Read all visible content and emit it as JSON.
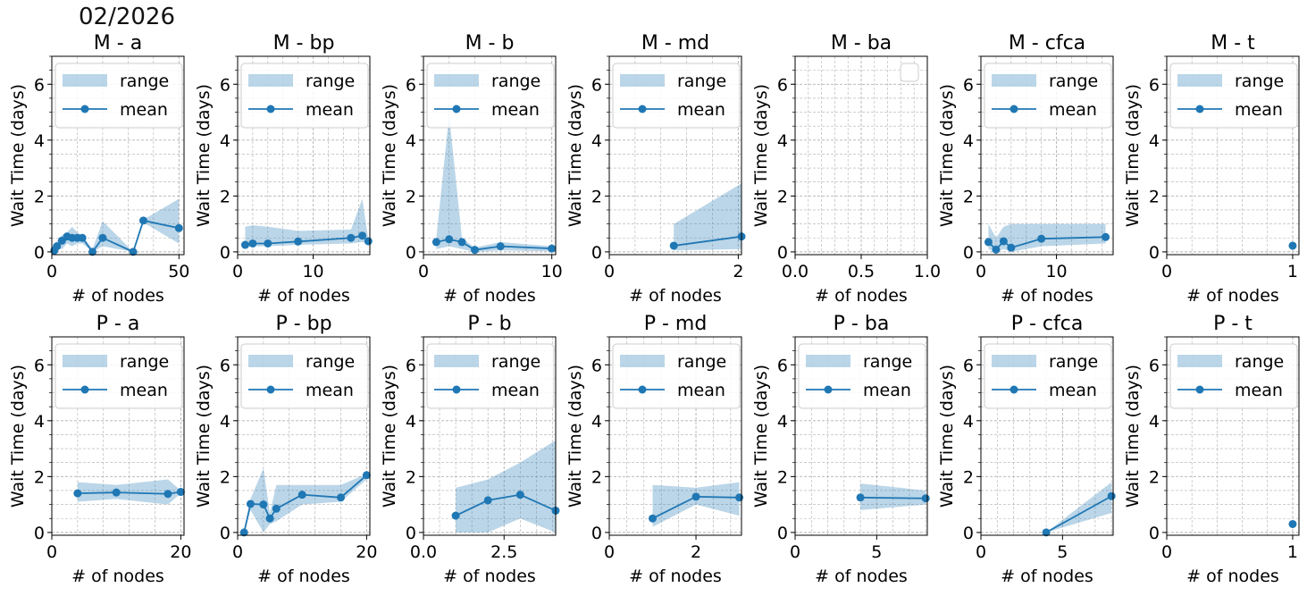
{
  "suptitle": "02/2026",
  "colors": {
    "mean": "#1f77b4",
    "range": "#1f77b4",
    "grid": "#b0b0b0",
    "axis": "#000000"
  },
  "legend_labels": {
    "range": "range",
    "mean": "mean"
  },
  "chart_data": [
    {
      "type": "area",
      "title": "M -  a",
      "xlabel": "# of nodes",
      "ylabel": "Wait Time (days)",
      "xlim": [
        0,
        52
      ],
      "ylim": [
        -0.1,
        7
      ],
      "xticks": [
        0,
        50
      ],
      "yticks": [
        0,
        2,
        4,
        6
      ],
      "legend": "upper-left",
      "legend_items": [
        "range",
        "mean"
      ],
      "x": [
        1,
        2,
        4,
        6,
        8,
        10,
        12,
        16,
        20,
        32,
        36,
        50
      ],
      "mean": [
        0.05,
        0.2,
        0.4,
        0.55,
        0.5,
        0.5,
        0.5,
        0.0,
        0.5,
        0.0,
        1.12,
        0.85
      ],
      "range_low": [
        0.0,
        0.1,
        0.1,
        0.3,
        0.2,
        0.3,
        0.3,
        0.0,
        0.2,
        0.0,
        1.05,
        0.3
      ],
      "range_high": [
        0.1,
        0.4,
        0.6,
        0.7,
        0.9,
        0.7,
        0.6,
        0.1,
        1.1,
        0.0,
        1.15,
        1.9
      ]
    },
    {
      "type": "area",
      "title": "M -  bp",
      "xlabel": "# of nodes",
      "ylabel": "Wait Time (days)",
      "xlim": [
        0,
        17.5
      ],
      "ylim": [
        -0.1,
        7
      ],
      "xticks": [
        0,
        10
      ],
      "yticks": [
        0,
        2,
        4,
        6
      ],
      "legend": "upper-left",
      "legend_items": [
        "range",
        "mean"
      ],
      "x": [
        1,
        2,
        4,
        8,
        15,
        16.5,
        17.3
      ],
      "mean": [
        0.25,
        0.3,
        0.3,
        0.37,
        0.5,
        0.58,
        0.38
      ],
      "range_low": [
        0.15,
        0.2,
        0.2,
        0.25,
        0.3,
        0.35,
        0.3
      ],
      "range_high": [
        0.9,
        0.95,
        0.9,
        0.75,
        0.8,
        1.9,
        0.45
      ]
    },
    {
      "type": "area",
      "title": "M -  b",
      "xlabel": "# of nodes",
      "ylabel": "Wait Time (days)",
      "xlim": [
        0,
        10.3
      ],
      "ylim": [
        -0.1,
        7
      ],
      "xticks": [
        0,
        10
      ],
      "yticks": [
        0,
        2,
        4,
        6
      ],
      "legend": "upper-left",
      "legend_items": [
        "range",
        "mean"
      ],
      "x": [
        1,
        2,
        3,
        4,
        6,
        10
      ],
      "mean": [
        0.35,
        0.45,
        0.35,
        0.07,
        0.2,
        0.12
      ],
      "range_low": [
        0.1,
        0.2,
        0.1,
        0.0,
        0.05,
        0.02
      ],
      "range_high": [
        0.5,
        4.9,
        0.5,
        0.15,
        0.35,
        0.2
      ]
    },
    {
      "type": "area",
      "title": "M -  md",
      "xlabel": "# of nodes",
      "ylabel": "Wait Time (days)",
      "xlim": [
        0,
        2.05
      ],
      "ylim": [
        -0.1,
        7
      ],
      "xticks": [
        0,
        2
      ],
      "yticks": [
        0,
        2,
        4,
        6
      ],
      "legend": "upper-left",
      "legend_items": [
        "range",
        "mean"
      ],
      "x": [
        1,
        2.05
      ],
      "mean": [
        0.22,
        0.55
      ],
      "range_low": [
        0.05,
        0.1
      ],
      "range_high": [
        1.0,
        2.45
      ]
    },
    {
      "type": "area",
      "title": "M -  ba",
      "xlabel": "# of nodes",
      "ylabel": "Wait Time (days)",
      "xlim": [
        0,
        1
      ],
      "ylim": [
        -0.1,
        7
      ],
      "xticks": [
        0.0,
        0.5,
        1.0
      ],
      "xtick_labels": [
        "0.0",
        "0.5",
        "1.0"
      ],
      "yticks": [
        0,
        2,
        4,
        6
      ],
      "legend": "upper-right",
      "legend_items": [],
      "x": [],
      "mean": [],
      "range_low": [],
      "range_high": []
    },
    {
      "type": "area",
      "title": "M -  cfca",
      "xlabel": "# of nodes",
      "ylabel": "Wait Time (days)",
      "xlim": [
        0,
        17.5
      ],
      "ylim": [
        -0.1,
        7
      ],
      "xticks": [
        0,
        10
      ],
      "yticks": [
        0,
        2,
        4,
        6
      ],
      "legend": "upper-left",
      "legend_items": [
        "range",
        "mean"
      ],
      "x": [
        1,
        2,
        3,
        4,
        8,
        16.5
      ],
      "mean": [
        0.35,
        0.08,
        0.38,
        0.15,
        0.47,
        0.53
      ],
      "range_low": [
        0.1,
        0.0,
        0.1,
        0.0,
        0.2,
        0.3
      ],
      "range_high": [
        1.0,
        0.5,
        0.9,
        1.0,
        1.0,
        1.0
      ]
    },
    {
      "type": "area",
      "title": "M -  t",
      "xlabel": "# of nodes",
      "ylabel": "Wait Time (days)",
      "xlim": [
        0,
        1.05
      ],
      "ylim": [
        -0.1,
        7
      ],
      "xticks": [
        0,
        1
      ],
      "yticks": [
        0,
        2,
        4,
        6
      ],
      "legend": "upper-left",
      "legend_items": [
        "range",
        "mean"
      ],
      "x": [
        1
      ],
      "mean": [
        0.22
      ],
      "range_low": [
        0.22
      ],
      "range_high": [
        0.22
      ]
    },
    {
      "type": "area",
      "title": "P -  a",
      "xlabel": "# of nodes",
      "ylabel": "Wait Time (days)",
      "xlim": [
        0,
        20.5
      ],
      "ylim": [
        -0.1,
        7
      ],
      "xticks": [
        0,
        20
      ],
      "yticks": [
        0,
        2,
        4,
        6
      ],
      "legend": "upper-left",
      "legend_items": [
        "range",
        "mean"
      ],
      "x": [
        4,
        10,
        18,
        20
      ],
      "mean": [
        1.4,
        1.43,
        1.38,
        1.45
      ],
      "range_low": [
        1.1,
        1.2,
        1.0,
        1.4
      ],
      "range_high": [
        1.8,
        1.7,
        1.9,
        1.5
      ]
    },
    {
      "type": "area",
      "title": "P -  bp",
      "xlabel": "# of nodes",
      "ylabel": "Wait Time (days)",
      "xlim": [
        0,
        20.5
      ],
      "ylim": [
        -0.1,
        7
      ],
      "xticks": [
        0,
        20
      ],
      "yticks": [
        0,
        2,
        4,
        6
      ],
      "legend": "upper-left",
      "legend_items": [
        "range",
        "mean"
      ],
      "x": [
        1,
        2,
        4,
        5,
        6,
        10,
        16,
        20
      ],
      "mean": [
        0.0,
        1.02,
        1.0,
        0.5,
        0.85,
        1.35,
        1.25,
        2.05
      ],
      "range_low": [
        0.0,
        0.8,
        0.0,
        0.3,
        0.4,
        1.0,
        1.1,
        1.9
      ],
      "range_high": [
        0.0,
        1.2,
        2.3,
        0.7,
        1.7,
        1.7,
        1.7,
        2.1
      ]
    },
    {
      "type": "area",
      "title": "P -  b",
      "xlabel": "# of nodes",
      "ylabel": "Wait Time (days)",
      "xlim": [
        0,
        4.1
      ],
      "ylim": [
        -0.1,
        7
      ],
      "xticks": [
        0.0,
        2.5
      ],
      "xtick_labels": [
        "0.0",
        "2.5"
      ],
      "yticks": [
        0,
        2,
        4,
        6
      ],
      "legend": "upper-left",
      "legend_items": [
        "range",
        "mean"
      ],
      "x": [
        1,
        2,
        3,
        4.1
      ],
      "mean": [
        0.6,
        1.15,
        1.35,
        0.78
      ],
      "range_low": [
        0.0,
        0.0,
        0.5,
        0.0
      ],
      "range_high": [
        1.6,
        1.9,
        2.5,
        3.3
      ]
    },
    {
      "type": "area",
      "title": "P -  md",
      "xlabel": "# of nodes",
      "ylabel": "Wait Time (days)",
      "xlim": [
        0,
        3.05
      ],
      "ylim": [
        -0.1,
        7
      ],
      "xticks": [
        0,
        2
      ],
      "yticks": [
        0,
        2,
        4,
        6
      ],
      "legend": "upper-left",
      "legend_items": [
        "range",
        "mean"
      ],
      "x": [
        1,
        2,
        3
      ],
      "mean": [
        0.5,
        1.28,
        1.25
      ],
      "range_low": [
        0.2,
        1.0,
        0.6
      ],
      "range_high": [
        1.7,
        1.6,
        1.8
      ]
    },
    {
      "type": "area",
      "title": "P -  ba",
      "xlabel": "# of nodes",
      "ylabel": "Wait Time (days)",
      "xlim": [
        0,
        8.1
      ],
      "ylim": [
        -0.1,
        7
      ],
      "xticks": [
        0,
        5
      ],
      "yticks": [
        0,
        2,
        4,
        6
      ],
      "legend": "upper-left",
      "legend_items": [
        "range",
        "mean"
      ],
      "x": [
        4,
        8
      ],
      "mean": [
        1.25,
        1.22
      ],
      "range_low": [
        0.8,
        1.0
      ],
      "range_high": [
        1.75,
        1.5
      ]
    },
    {
      "type": "area",
      "title": "P -  cfca",
      "xlabel": "# of nodes",
      "ylabel": "Wait Time (days)",
      "xlim": [
        0,
        8.1
      ],
      "ylim": [
        -0.1,
        7
      ],
      "xticks": [
        0,
        5
      ],
      "yticks": [
        0,
        2,
        4,
        6
      ],
      "legend": "upper-left",
      "legend_items": [
        "range",
        "mean"
      ],
      "x": [
        4,
        8
      ],
      "mean": [
        0.0,
        1.3
      ],
      "range_low": [
        0.0,
        0.7
      ],
      "range_high": [
        0.0,
        1.8
      ]
    },
    {
      "type": "area",
      "title": "P -  t",
      "xlabel": "# of nodes",
      "ylabel": "Wait Time (days)",
      "xlim": [
        0,
        1.05
      ],
      "ylim": [
        -0.1,
        7
      ],
      "xticks": [
        0,
        1
      ],
      "yticks": [
        0,
        2,
        4,
        6
      ],
      "legend": "upper-left",
      "legend_items": [
        "range",
        "mean"
      ],
      "x": [
        1
      ],
      "mean": [
        0.3
      ],
      "range_low": [
        0.3
      ],
      "range_high": [
        0.3
      ]
    }
  ]
}
